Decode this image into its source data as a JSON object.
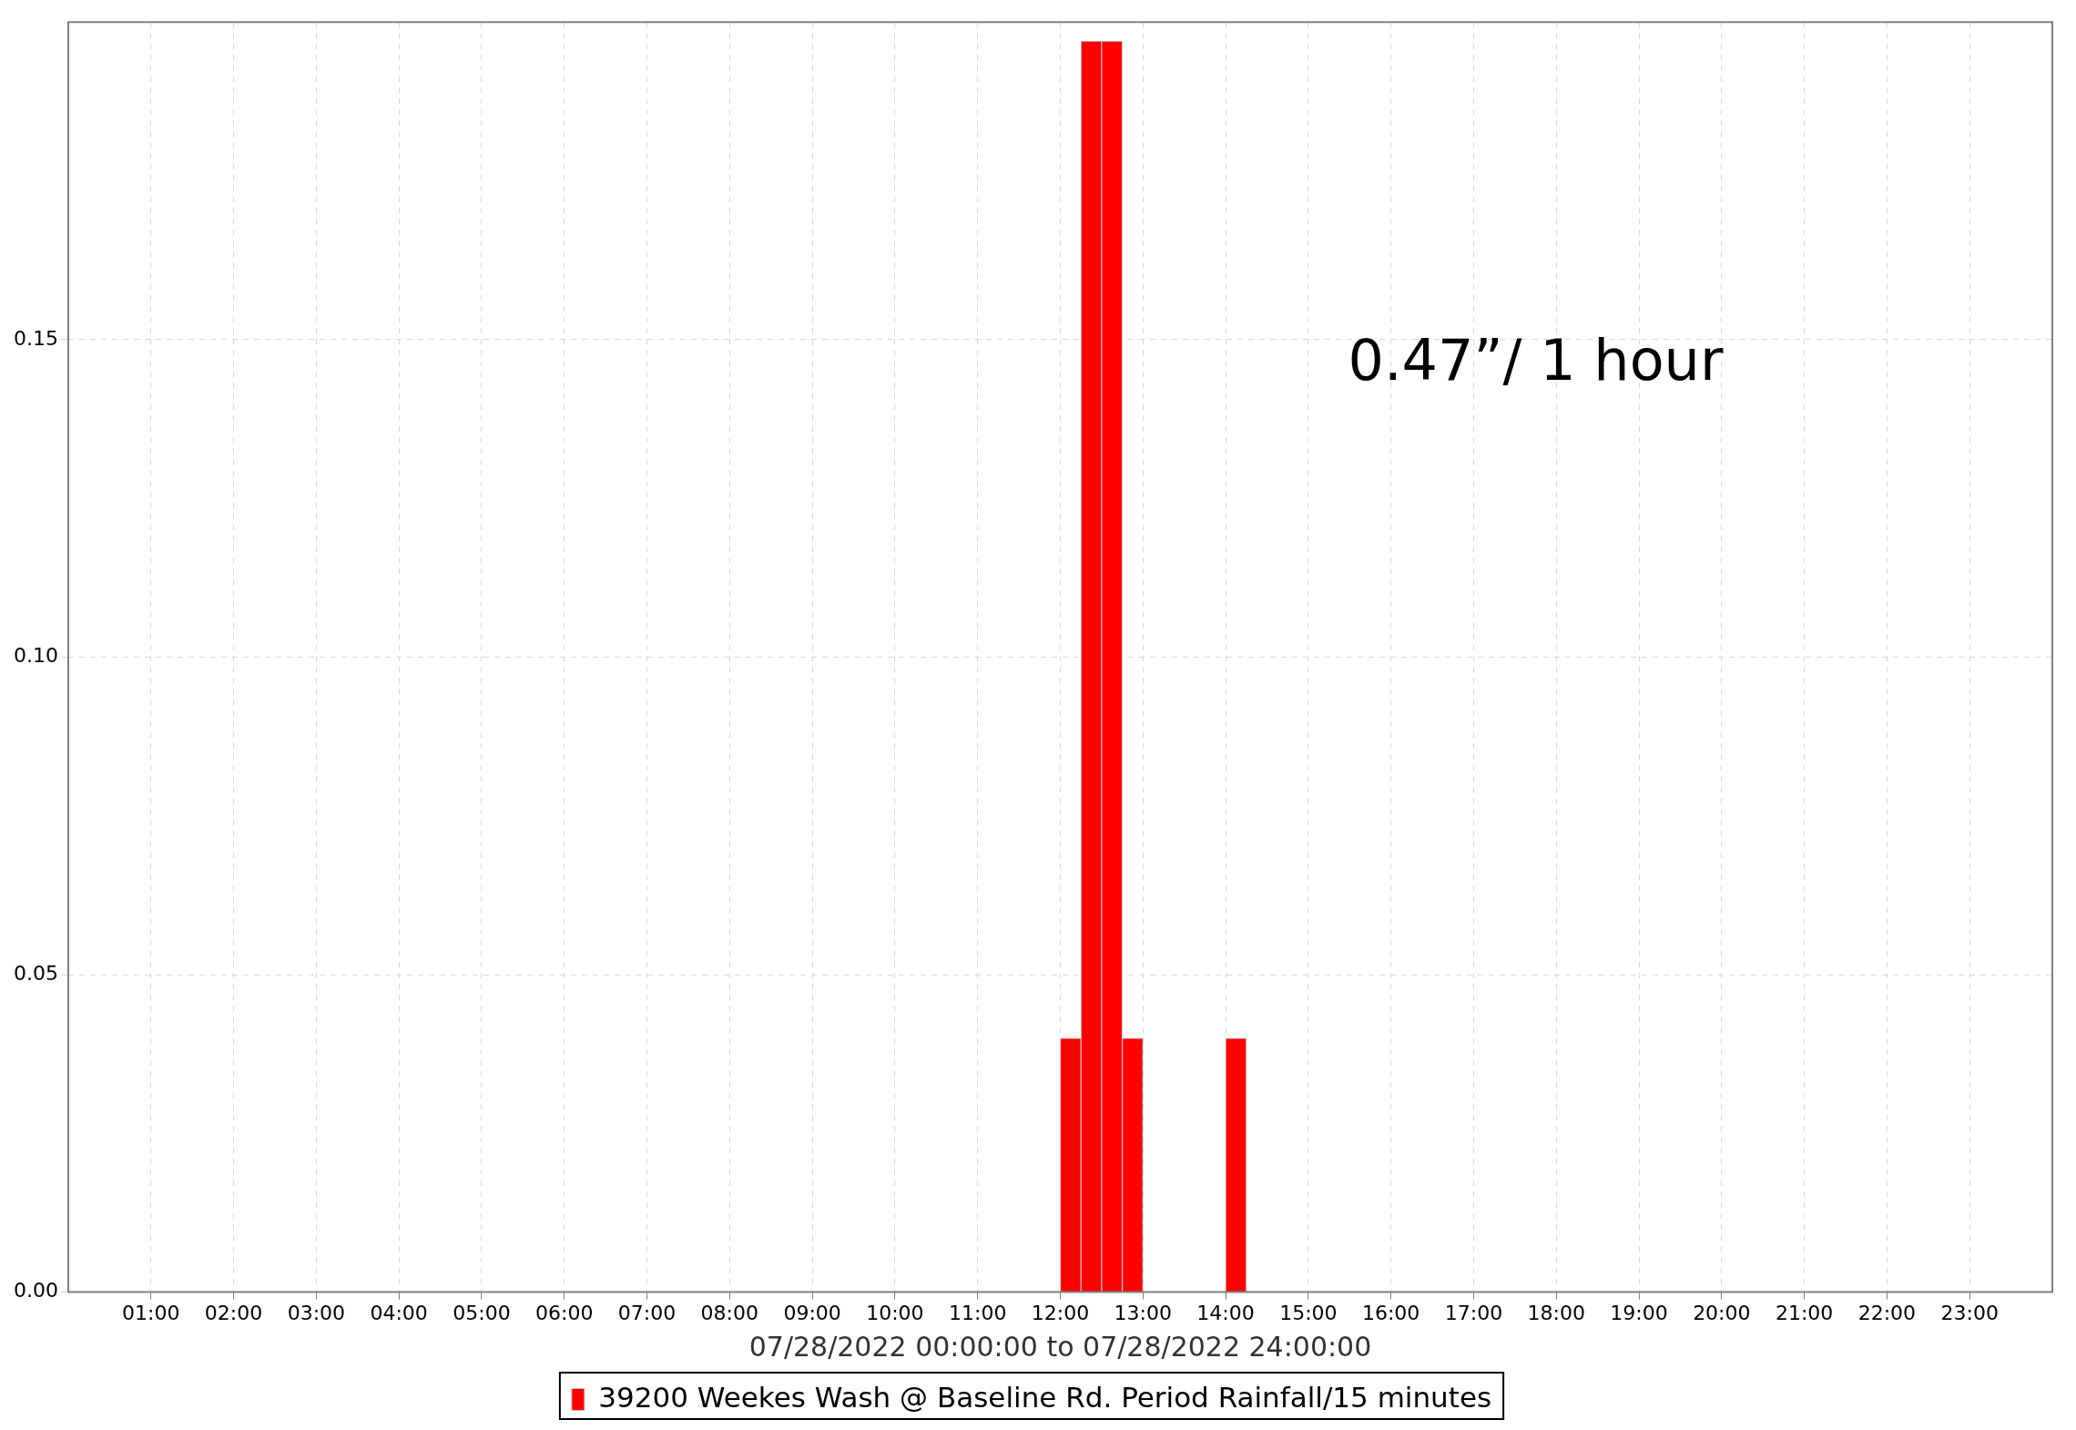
{
  "chart_data": {
    "type": "bar",
    "xlabel": "07/28/2022 00:00:00 to 07/28/2022 24:00:00",
    "x": [
      12.125,
      12.375,
      12.625,
      12.875,
      14.125
    ],
    "series": [
      {
        "name": "39200 Weekes Wash @ Baseline Rd. Period Rainfall/15 minutes",
        "color": "#ff0000",
        "values": [
          0.04,
          0.197,
          0.197,
          0.04,
          0.04
        ]
      }
    ],
    "xlim": [
      0,
      24
    ],
    "xticks": [
      {
        "value": 1,
        "label": "01:00"
      },
      {
        "value": 2,
        "label": "02:00"
      },
      {
        "value": 3,
        "label": "03:00"
      },
      {
        "value": 4,
        "label": "04:00"
      },
      {
        "value": 5,
        "label": "05:00"
      },
      {
        "value": 6,
        "label": "06:00"
      },
      {
        "value": 7,
        "label": "07:00"
      },
      {
        "value": 8,
        "label": "08:00"
      },
      {
        "value": 9,
        "label": "09:00"
      },
      {
        "value": 10,
        "label": "10:00"
      },
      {
        "value": 11,
        "label": "11:00"
      },
      {
        "value": 12,
        "label": "12:00"
      },
      {
        "value": 13,
        "label": "13:00"
      },
      {
        "value": 14,
        "label": "14:00"
      },
      {
        "value": 15,
        "label": "15:00"
      },
      {
        "value": 16,
        "label": "16:00"
      },
      {
        "value": 17,
        "label": "17:00"
      },
      {
        "value": 18,
        "label": "18:00"
      },
      {
        "value": 19,
        "label": "19:00"
      },
      {
        "value": 20,
        "label": "20:00"
      },
      {
        "value": 21,
        "label": "21:00"
      },
      {
        "value": 22,
        "label": "22:00"
      },
      {
        "value": 23,
        "label": "23:00"
      }
    ],
    "ylim": [
      0,
      0.2
    ],
    "yticks": [
      {
        "value": 0,
        "label": "0.00"
      },
      {
        "value": 0.05,
        "label": "0.05"
      },
      {
        "value": 0.1,
        "label": "0.10"
      },
      {
        "value": 0.15,
        "label": "0.15"
      }
    ],
    "grid": true,
    "legend": "bottom",
    "annotations": [
      "0.47”/ 1 hour"
    ]
  }
}
